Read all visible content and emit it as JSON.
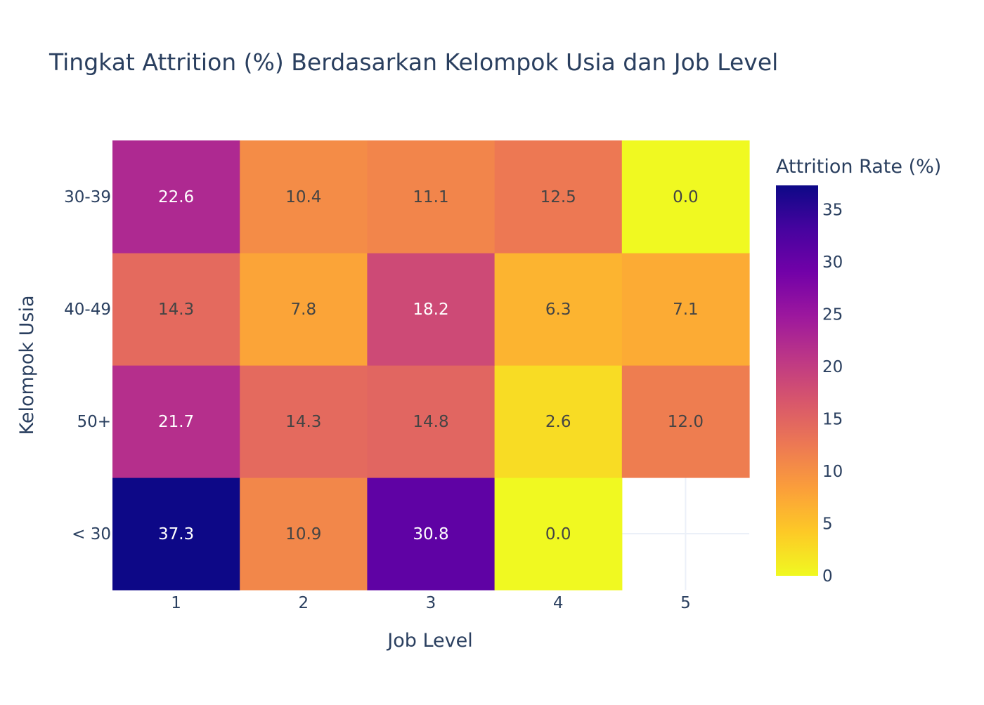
{
  "chart_data": {
    "type": "heatmap",
    "title": "Tingkat Attrition (%) Berdasarkan Kelompok Usia dan Job Level",
    "xlabel": "Job Level",
    "ylabel": "Kelompok Usia",
    "x_categories": [
      "1",
      "2",
      "3",
      "4",
      "5"
    ],
    "y_categories": [
      "< 30",
      "50+",
      "40-49",
      "30-39"
    ],
    "values": [
      [
        37.3,
        10.9,
        30.8,
        0.0,
        null
      ],
      [
        21.7,
        14.3,
        14.8,
        2.6,
        12.0
      ],
      [
        14.3,
        7.8,
        18.2,
        6.3,
        7.1
      ],
      [
        22.6,
        10.4,
        11.1,
        12.5,
        0.0
      ]
    ],
    "labels": [
      [
        "37.3",
        "10.9",
        "30.8",
        "0.0",
        ""
      ],
      [
        "21.7",
        "14.3",
        "14.8",
        "2.6",
        "12.0"
      ],
      [
        "14.3",
        "7.8",
        "18.2",
        "6.3",
        "7.1"
      ],
      [
        "22.6",
        "10.4",
        "11.1",
        "12.5",
        "0.0"
      ]
    ],
    "colorbar": {
      "title": "Attrition Rate (%)",
      "zmin": 0,
      "zmax": 37.3,
      "ticks": [
        0,
        5,
        10,
        15,
        20,
        25,
        30,
        35
      ],
      "tick_labels": [
        "0",
        "5",
        "10",
        "15",
        "20",
        "25",
        "30",
        "35"
      ],
      "colorscale": [
        "#f0f921",
        "#fdca26",
        "#fb9f3a",
        "#ed7953",
        "#d8576b",
        "#bd3786",
        "#9c179e",
        "#7201a8",
        "#46039f",
        "#0d0887"
      ]
    },
    "grid_color": "#ebf0f8",
    "text_color_dark": "#444444",
    "text_color_light": "#ffffff"
  }
}
